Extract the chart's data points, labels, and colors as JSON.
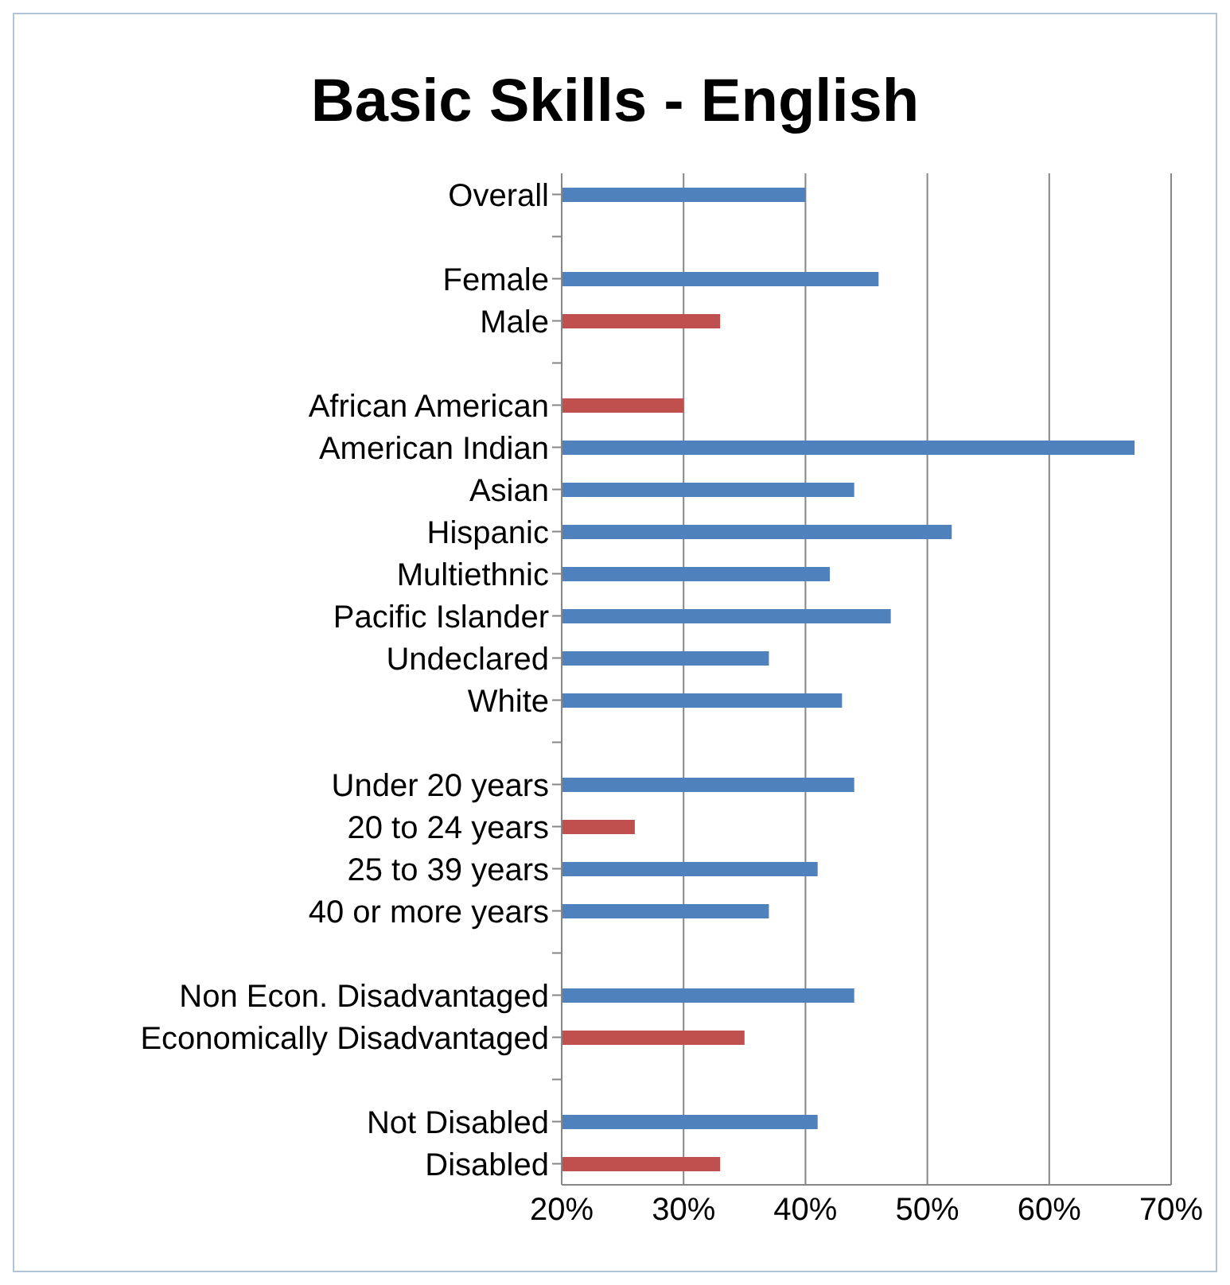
{
  "chart_data": {
    "type": "bar",
    "title": "Basic Skills - English",
    "orientation": "horizontal",
    "categories": [
      "Overall",
      null,
      "Female",
      "Male",
      null,
      "African American",
      "American Indian",
      "Asian",
      "Hispanic",
      "Multiethnic",
      "Pacific Islander",
      "Undeclared",
      "White",
      null,
      "Under 20 years",
      "20 to 24 years",
      "25 to 39 years",
      "40 or more years",
      null,
      "Non Econ. Disadvantaged",
      "Economically Disadvantaged",
      null,
      "Not Disabled",
      "Disabled"
    ],
    "values": [
      40,
      null,
      46,
      33,
      null,
      30,
      67,
      44,
      52,
      42,
      47,
      37,
      43,
      null,
      44,
      26,
      41,
      37,
      null,
      44,
      35,
      null,
      41,
      33
    ],
    "colors": [
      "#4f81bd",
      null,
      "#4f81bd",
      "#c0504d",
      null,
      "#c0504d",
      "#4f81bd",
      "#4f81bd",
      "#4f81bd",
      "#4f81bd",
      "#4f81bd",
      "#4f81bd",
      "#4f81bd",
      null,
      "#4f81bd",
      "#c0504d",
      "#4f81bd",
      "#4f81bd",
      null,
      "#4f81bd",
      "#c0504d",
      null,
      "#4f81bd",
      "#c0504d"
    ],
    "xlim": [
      20,
      70
    ],
    "xticks": [
      {
        "value": 20,
        "label": "20%"
      },
      {
        "value": 30,
        "label": "30%"
      },
      {
        "value": 40,
        "label": "40%"
      },
      {
        "value": 50,
        "label": "50%"
      },
      {
        "value": 60,
        "label": "60%"
      },
      {
        "value": 70,
        "label": "70%"
      }
    ],
    "grid": "x"
  }
}
